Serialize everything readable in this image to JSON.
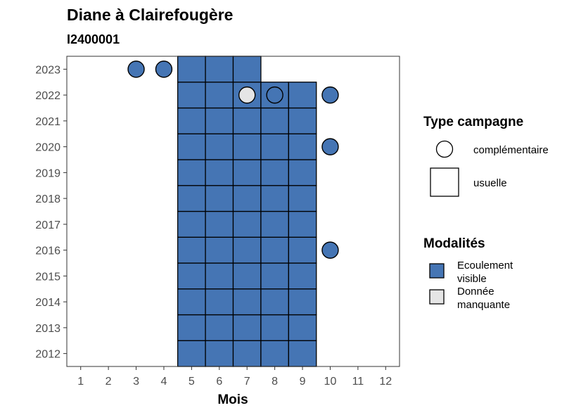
{
  "chart_data": {
    "type": "heatmap",
    "title": "Diane à Clairefougère",
    "subtitle": "I2400001",
    "xlabel": "Mois",
    "ylabel": "",
    "x_ticks": [
      "1",
      "2",
      "3",
      "4",
      "5",
      "6",
      "7",
      "8",
      "9",
      "10",
      "11",
      "12"
    ],
    "y_ticks": [
      "2012",
      "2013",
      "2014",
      "2015",
      "2016",
      "2017",
      "2018",
      "2019",
      "2020",
      "2021",
      "2022",
      "2023"
    ],
    "xlim": [
      0.5,
      12.5
    ],
    "ylim": [
      2011.5,
      2023.5
    ],
    "grid": false,
    "colors": {
      "Ecoulement visible": "#4575b4",
      "Donnée manquante": "#e5e5e5"
    },
    "legend_type": {
      "title": "Type campagne",
      "items": [
        {
          "label": "complémentaire",
          "shape": "circle"
        },
        {
          "label": "usuelle",
          "shape": "square"
        }
      ]
    },
    "legend_modalites": {
      "title": "Modalités",
      "items": [
        {
          "label_lines": [
            "Ecoulement",
            "visible"
          ],
          "key": "Ecoulement visible"
        },
        {
          "label_lines": [
            "Donnée",
            "manquante"
          ],
          "key": "Donnée manquante"
        }
      ]
    },
    "usuelle": [
      {
        "year": 2012,
        "months": [
          5,
          6,
          7,
          8,
          9
        ],
        "modalite": "Ecoulement visible"
      },
      {
        "year": 2013,
        "months": [
          5,
          6,
          7,
          8,
          9
        ],
        "modalite": "Ecoulement visible"
      },
      {
        "year": 2014,
        "months": [
          5,
          6,
          7,
          8,
          9
        ],
        "modalite": "Ecoulement visible"
      },
      {
        "year": 2015,
        "months": [
          5,
          6,
          7,
          8,
          9
        ],
        "modalite": "Ecoulement visible"
      },
      {
        "year": 2016,
        "months": [
          5,
          6,
          7,
          8,
          9
        ],
        "modalite": "Ecoulement visible"
      },
      {
        "year": 2017,
        "months": [
          5,
          6,
          7,
          8,
          9
        ],
        "modalite": "Ecoulement visible"
      },
      {
        "year": 2018,
        "months": [
          5,
          6,
          7,
          8,
          9
        ],
        "modalite": "Ecoulement visible"
      },
      {
        "year": 2019,
        "months": [
          5,
          6,
          7,
          8,
          9
        ],
        "modalite": "Ecoulement visible"
      },
      {
        "year": 2020,
        "months": [
          5,
          6,
          7,
          8,
          9
        ],
        "modalite": "Ecoulement visible"
      },
      {
        "year": 2021,
        "months": [
          5,
          6,
          7,
          8,
          9
        ],
        "modalite": "Ecoulement visible"
      },
      {
        "year": 2022,
        "months": [
          5,
          6,
          7,
          8,
          9
        ],
        "modalite": "Ecoulement visible"
      },
      {
        "year": 2023,
        "months": [
          5,
          6,
          7
        ],
        "modalite": "Ecoulement visible"
      }
    ],
    "complementaire": [
      {
        "year": 2023,
        "month": 3,
        "modalite": "Ecoulement visible"
      },
      {
        "year": 2023,
        "month": 4,
        "modalite": "Ecoulement visible"
      },
      {
        "year": 2022,
        "month": 7,
        "modalite": "Donnée manquante"
      },
      {
        "year": 2022,
        "month": 8,
        "modalite": "Ecoulement visible"
      },
      {
        "year": 2022,
        "month": 10,
        "modalite": "Ecoulement visible"
      },
      {
        "year": 2020,
        "month": 10,
        "modalite": "Ecoulement visible"
      },
      {
        "year": 2016,
        "month": 10,
        "modalite": "Ecoulement visible"
      }
    ]
  }
}
